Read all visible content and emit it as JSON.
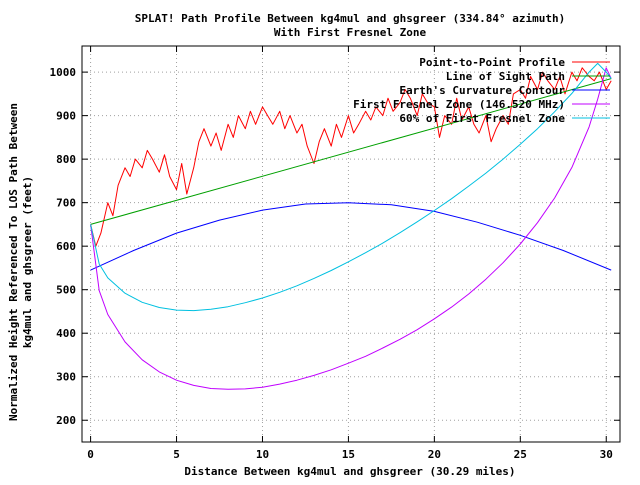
{
  "chart_data": {
    "type": "line",
    "title": "SPLAT! Path Profile Between kg4mul and ghsgreer (334.84° azimuth)",
    "subtitle": "With First Fresnel Zone",
    "xlabel": "Distance Between kg4mul and ghsgreer (30.29 miles)",
    "ylabel_line1": "Normalized Height Referenced To LOS Path Between",
    "ylabel_line2": "kg4mul and ghsgreer (feet)",
    "xlim": [
      -0.5,
      30.8
    ],
    "ylim": [
      150,
      1060
    ],
    "x_ticks": [
      0,
      5,
      10,
      15,
      20,
      25,
      30
    ],
    "y_ticks": [
      200,
      300,
      400,
      500,
      600,
      700,
      800,
      900,
      1000
    ],
    "grid": true,
    "legend_position": "top-right",
    "series": [
      {
        "name": "Point-to-Point Profile",
        "color": "#ff0000",
        "x": [
          0,
          0.3,
          0.6,
          1.0,
          1.3,
          1.6,
          2.0,
          2.3,
          2.6,
          3.0,
          3.3,
          3.6,
          4.0,
          4.3,
          4.6,
          5.0,
          5.3,
          5.6,
          6.0,
          6.3,
          6.6,
          7.0,
          7.3,
          7.6,
          8.0,
          8.3,
          8.6,
          9.0,
          9.3,
          9.6,
          10.0,
          10.3,
          10.6,
          11.0,
          11.3,
          11.6,
          12.0,
          12.3,
          12.6,
          13.0,
          13.3,
          13.6,
          14.0,
          14.3,
          14.6,
          15.0,
          15.3,
          15.6,
          16.0,
          16.3,
          16.6,
          17.0,
          17.3,
          17.6,
          18.0,
          18.3,
          18.6,
          19.0,
          19.3,
          19.6,
          20.0,
          20.3,
          20.6,
          21.0,
          21.3,
          21.6,
          22.0,
          22.3,
          22.6,
          23.0,
          23.3,
          23.6,
          24.0,
          24.3,
          24.6,
          25.0,
          25.3,
          25.6,
          26.0,
          26.3,
          26.6,
          27.0,
          27.3,
          27.6,
          28.0,
          28.3,
          28.6,
          29.0,
          29.3,
          29.6,
          30.0,
          30.29
        ],
        "y": [
          650,
          600,
          630,
          700,
          670,
          740,
          780,
          760,
          800,
          780,
          820,
          800,
          770,
          810,
          760,
          730,
          790,
          720,
          780,
          840,
          870,
          830,
          860,
          820,
          880,
          850,
          900,
          870,
          910,
          880,
          920,
          900,
          880,
          910,
          870,
          900,
          860,
          880,
          830,
          790,
          840,
          870,
          830,
          880,
          850,
          900,
          860,
          880,
          910,
          890,
          920,
          900,
          940,
          910,
          930,
          960,
          940,
          900,
          950,
          930,
          920,
          850,
          900,
          880,
          940,
          890,
          920,
          880,
          860,
          900,
          840,
          870,
          900,
          880,
          950,
          960,
          940,
          990,
          960,
          1000,
          980,
          960,
          990,
          950,
          1000,
          980,
          1010,
          990,
          980,
          1000,
          960,
          980
        ]
      },
      {
        "name": "Line of Sight Path",
        "color": "#00a000",
        "x": [
          0,
          30.29
        ],
        "y": [
          650,
          985
        ]
      },
      {
        "name": "Earth's Curvature Contour",
        "color": "#0000ff",
        "x": [
          0,
          2.5,
          5,
          7.5,
          10,
          12.5,
          15,
          17.5,
          20,
          22.5,
          25,
          27.5,
          30.29
        ],
        "y": [
          545,
          590,
          630,
          660,
          683,
          697,
          700,
          695,
          680,
          655,
          625,
          590,
          545
        ]
      },
      {
        "name": "First Fresnel Zone (146.520 MHz)",
        "color": "#c000ff",
        "x": [
          0,
          0.5,
          1,
          2,
          3,
          4,
          5,
          6,
          7,
          8,
          9,
          10,
          11,
          12,
          13,
          14,
          15,
          16,
          17,
          18,
          19,
          20,
          21,
          22,
          23,
          24,
          25,
          26,
          27,
          28,
          29,
          29.5,
          30,
          30.29
        ],
        "y": [
          650,
          498,
          443,
          380,
          339,
          311,
          292,
          280,
          273,
          271,
          272,
          276,
          283,
          292,
          303,
          316,
          331,
          347,
          366,
          386,
          408,
          433,
          460,
          490,
          524,
          562,
          605,
          654,
          711,
          781,
          874,
          938,
          1010,
          985
        ]
      },
      {
        "name": "60% of First Fresnel Zone",
        "color": "#00c0e0",
        "x": [
          0,
          0.5,
          1,
          2,
          3,
          4,
          5,
          6,
          7,
          8,
          9,
          10,
          11,
          12,
          13,
          14,
          15,
          16,
          17,
          18,
          19,
          20,
          21,
          22,
          23,
          24,
          25,
          26,
          27,
          28,
          29,
          29.5,
          30,
          30.29
        ],
        "y": [
          650,
          559,
          527,
          492,
          471,
          459,
          453,
          452,
          455,
          461,
          470,
          481,
          494,
          509,
          526,
          544,
          564,
          585,
          607,
          631,
          656,
          682,
          709,
          738,
          768,
          800,
          834,
          870,
          909,
          951,
          1000,
          1020,
          1000,
          985
        ]
      }
    ]
  }
}
